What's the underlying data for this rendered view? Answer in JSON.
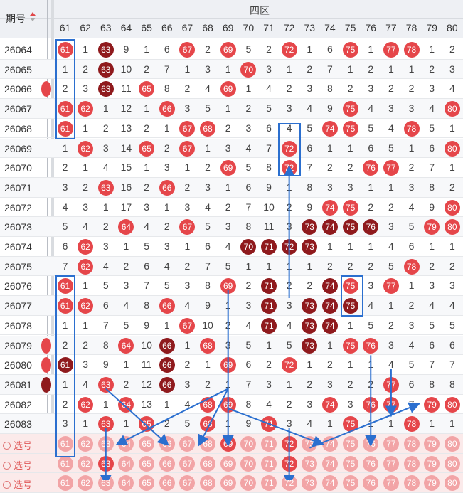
{
  "header": {
    "period_label": "期号",
    "zone_label": "四区"
  },
  "columns": [
    "61",
    "62",
    "63",
    "64",
    "65",
    "66",
    "67",
    "68",
    "69",
    "70",
    "71",
    "72",
    "73",
    "74",
    "75",
    "76",
    "77",
    "78",
    "79",
    "80"
  ],
  "rows": [
    {
      "period": "26064",
      "cells": [
        "61r",
        "1",
        "63d",
        "9",
        "1",
        "6",
        "67r",
        "2",
        "69r",
        "5",
        "2",
        "72r",
        "1",
        "6",
        "75r",
        "1",
        "77r",
        "78r",
        "1",
        "2"
      ]
    },
    {
      "period": "26065",
      "cells": [
        "1",
        "2",
        "63d",
        "10",
        "2",
        "7",
        "1",
        "3",
        "1",
        "70r",
        "3",
        "1",
        "2",
        "7",
        "1",
        "2",
        "1",
        "1",
        "2",
        "3"
      ]
    },
    {
      "period": "26066",
      "cells": [
        "2",
        "3",
        "63d",
        "11",
        "65r",
        "8",
        "2",
        "4",
        "69r",
        "1",
        "4",
        "2",
        "3",
        "8",
        "2",
        "3",
        "2",
        "2",
        "3",
        "4"
      ]
    },
    {
      "period": "26067",
      "cells": [
        "61r",
        "62r",
        "1",
        "12",
        "1",
        "66r",
        "3",
        "5",
        "1",
        "2",
        "5",
        "3",
        "4",
        "9",
        "75r",
        "4",
        "3",
        "3",
        "4",
        "80r"
      ]
    },
    {
      "period": "26068",
      "cells": [
        "61r",
        "1",
        "2",
        "13",
        "2",
        "1",
        "67r",
        "68r",
        "2",
        "3",
        "6",
        "4",
        "5",
        "74r",
        "75r",
        "5",
        "4",
        "78r",
        "5",
        "1"
      ]
    },
    {
      "period": "26069",
      "cells": [
        "1",
        "62r",
        "3",
        "14",
        "65r",
        "2",
        "67r",
        "1",
        "3",
        "4",
        "7",
        "72r",
        "6",
        "1",
        "1",
        "6",
        "5",
        "1",
        "6",
        "80r"
      ]
    },
    {
      "period": "26070",
      "cells": [
        "2",
        "1",
        "4",
        "15",
        "1",
        "3",
        "1",
        "2",
        "69r",
        "5",
        "8",
        "72r",
        "7",
        "2",
        "2",
        "76r",
        "77r",
        "2",
        "7",
        "1"
      ]
    },
    {
      "period": "26071",
      "cells": [
        "3",
        "2",
        "63r",
        "16",
        "2",
        "66r",
        "2",
        "3",
        "1",
        "6",
        "9",
        "1",
        "8",
        "3",
        "3",
        "1",
        "1",
        "3",
        "8",
        "2"
      ]
    },
    {
      "period": "26072",
      "cells": [
        "4",
        "3",
        "1",
        "17",
        "3",
        "1",
        "3",
        "4",
        "2",
        "7",
        "10",
        "2",
        "9",
        "74r",
        "75r",
        "2",
        "2",
        "4",
        "9",
        "80r"
      ]
    },
    {
      "period": "26073",
      "cells": [
        "5",
        "4",
        "2",
        "64r",
        "4",
        "2",
        "67r",
        "5",
        "3",
        "8",
        "11",
        "3",
        "73d",
        "74d",
        "75d",
        "76d",
        "3",
        "5",
        "79r",
        "80r"
      ]
    },
    {
      "period": "26074",
      "cells": [
        "6",
        "62r",
        "3",
        "1",
        "5",
        "3",
        "1",
        "6",
        "4",
        "70d",
        "71d",
        "72d",
        "73d",
        "1",
        "1",
        "1",
        "4",
        "6",
        "1",
        "1"
      ]
    },
    {
      "period": "26075",
      "cells": [
        "7",
        "62r",
        "4",
        "2",
        "6",
        "4",
        "2",
        "7",
        "5",
        "1",
        "1",
        "1",
        "1",
        "2",
        "2",
        "2",
        "5",
        "78r",
        "2",
        "2"
      ]
    },
    {
      "period": "26076",
      "cells": [
        "61r",
        "1",
        "5",
        "3",
        "7",
        "5",
        "3",
        "8",
        "69r",
        "2",
        "71d",
        "2",
        "2",
        "74d",
        "75r",
        "3",
        "77r",
        "1",
        "3",
        "3"
      ]
    },
    {
      "period": "26077",
      "cells": [
        "61r",
        "62r",
        "6",
        "4",
        "8",
        "66r",
        "4",
        "9",
        "1",
        "3",
        "71d",
        "3",
        "73d",
        "74d",
        "75d",
        "4",
        "1",
        "2",
        "4",
        "4"
      ]
    },
    {
      "period": "26078",
      "cells": [
        "1",
        "1",
        "7",
        "5",
        "9",
        "1",
        "67r",
        "10",
        "2",
        "4",
        "71d",
        "4",
        "73d",
        "74d",
        "1",
        "5",
        "2",
        "3",
        "5",
        "5"
      ]
    },
    {
      "period": "26079",
      "cells": [
        "2",
        "2",
        "8",
        "64r",
        "10",
        "66d",
        "1",
        "68r",
        "3",
        "5",
        "1",
        "5",
        "73d",
        "1",
        "75r",
        "76r",
        "3",
        "4",
        "6",
        "6"
      ]
    },
    {
      "period": "26080",
      "cells": [
        "61d",
        "3",
        "9",
        "1",
        "11",
        "66d",
        "2",
        "1",
        "69r",
        "6",
        "2",
        "72r",
        "1",
        "2",
        "1",
        "1",
        "4",
        "5",
        "7",
        "7"
      ]
    },
    {
      "period": "26081",
      "cells": [
        "1",
        "4",
        "63r",
        "2",
        "12",
        "66d",
        "3",
        "2",
        "1",
        "7",
        "3",
        "1",
        "2",
        "3",
        "2",
        "2",
        "77r",
        "6",
        "8",
        "8"
      ]
    },
    {
      "period": "26082",
      "cells": [
        "2",
        "62r",
        "1",
        "64r",
        "13",
        "1",
        "4",
        "68r",
        "69r",
        "8",
        "4",
        "2",
        "3",
        "74r",
        "3",
        "76r",
        "77r",
        "7",
        "79r",
        "80r"
      ]
    },
    {
      "period": "26083",
      "cells": [
        "3",
        "1",
        "63r",
        "1",
        "65r",
        "2",
        "5",
        "68r",
        "1",
        "9",
        "71r",
        "3",
        "4",
        "1",
        "75r",
        "1",
        "1",
        "78r",
        "1",
        "1"
      ]
    }
  ],
  "pick_rows": [
    {
      "label": "选号",
      "cells": [
        "61f",
        "62f",
        "63f",
        "64f",
        "65f",
        "66f",
        "67f",
        "68f",
        "69r",
        "70f",
        "71f",
        "72r",
        "73f",
        "74f",
        "75f",
        "76f",
        "77f",
        "78f",
        "79f",
        "80f"
      ]
    },
    {
      "label": "选号",
      "cells": [
        "61f",
        "62f",
        "63r",
        "64f",
        "65f",
        "66f",
        "67f",
        "68f",
        "69f",
        "70f",
        "71f",
        "72r",
        "73f",
        "74f",
        "75f",
        "76f",
        "77f",
        "78f",
        "79f",
        "80f"
      ]
    },
    {
      "label": "选号",
      "cells": [
        "61f",
        "62f",
        "63f",
        "64f",
        "65f",
        "66f",
        "67f",
        "68f",
        "69f",
        "70f",
        "71f",
        "72f",
        "73f",
        "74f",
        "75f",
        "76f",
        "77f",
        "78f",
        "79f",
        "80f"
      ]
    }
  ],
  "colors": {
    "hit": "#e5464a",
    "repeat": "#8f1a1d",
    "annot": "#2b6fcf"
  }
}
